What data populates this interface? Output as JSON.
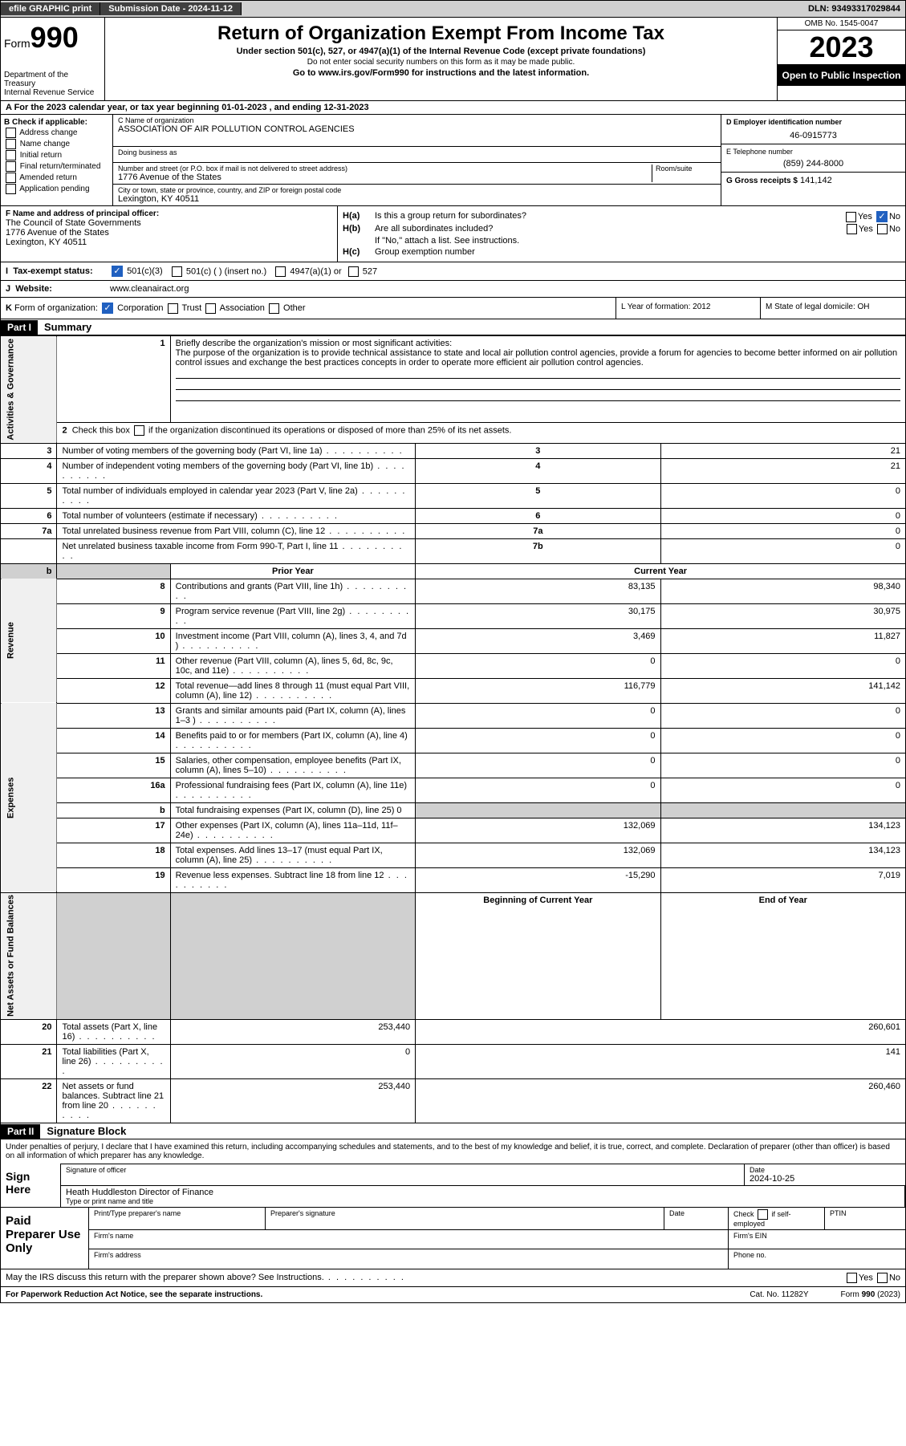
{
  "top": {
    "efile": "efile GRAPHIC print",
    "submission": "Submission Date - 2024-11-12",
    "dln": "DLN: 93493317029844"
  },
  "header": {
    "form_prefix": "Form",
    "form_num": "990",
    "dept": "Department of the Treasury",
    "irs": "Internal Revenue Service",
    "title": "Return of Organization Exempt From Income Tax",
    "subtitle": "Under section 501(c), 527, or 4947(a)(1) of the Internal Revenue Code (except private foundations)",
    "warn": "Do not enter social security numbers on this form as it may be made public.",
    "goto": "Go to www.irs.gov/Form990 for instructions and the latest information.",
    "omb": "OMB No. 1545-0047",
    "year": "2023",
    "inspection": "Open to Public Inspection"
  },
  "sectionA": "A  For the 2023 calendar year, or tax year beginning 01-01-2023   , and ending 12-31-2023",
  "b": {
    "label": "B Check if applicable:",
    "opts": [
      "Address change",
      "Name change",
      "Initial return",
      "Final return/terminated",
      "Amended return",
      "Application pending"
    ]
  },
  "c": {
    "name_label": "C Name of organization",
    "name": "ASSOCIATION OF AIR POLLUTION CONTROL AGENCIES",
    "dba_label": "Doing business as",
    "street_label": "Number and street (or P.O. box if mail is not delivered to street address)",
    "room_label": "Room/suite",
    "street": "1776 Avenue of the States",
    "city_label": "City or town, state or province, country, and ZIP or foreign postal code",
    "city": "Lexington, KY  40511"
  },
  "d": {
    "label": "D Employer identification number",
    "value": "46-0915773"
  },
  "e": {
    "label": "E Telephone number",
    "value": "(859) 244-8000"
  },
  "g": {
    "label": "G Gross receipts $",
    "value": "141,142"
  },
  "f": {
    "label": "F  Name and address of principal officer:",
    "name": "The Council of State Governments",
    "street": "1776 Avenue of the States",
    "city": "Lexington, KY  40511"
  },
  "h": {
    "a_label": "H(a)",
    "a_text": "Is this a group return for subordinates?",
    "a_ans": "No",
    "b_label": "H(b)",
    "b_text": "Are all subordinates included?",
    "b_note": "If \"No,\" attach a list. See instructions.",
    "c_label": "H(c)",
    "c_text": "Group exemption number"
  },
  "i": {
    "label": "I",
    "text": "Tax-exempt status:",
    "opt1": "501(c)(3)",
    "opt2": "501(c) (  ) (insert no.)",
    "opt3": "4947(a)(1) or",
    "opt4": "527"
  },
  "j": {
    "label": "J",
    "text": "Website:",
    "value": "www.cleanairact.org"
  },
  "k": {
    "label": "K",
    "text": "Form of organization:",
    "opts": [
      "Corporation",
      "Trust",
      "Association",
      "Other"
    ]
  },
  "l": {
    "text": "L Year of formation: 2012"
  },
  "m": {
    "text": "M State of legal domicile: OH"
  },
  "part1": {
    "label": "Part I",
    "title": "Summary"
  },
  "summary": {
    "s1_label": "1",
    "s1_text": "Briefly describe the organization's mission or most significant activities:",
    "s1_mission": "The purpose of the organization is to provide technical assistance to state and local air pollution control agencies, provide a forum for agencies to become better informed on air pollution control issues and exchange the best practices concepts in order to operate more efficient air pollution control agencies.",
    "s2": "2   Check this box      if the organization discontinued its operations or disposed of more than 25% of its net assets.",
    "rows_ag": [
      {
        "n": "3",
        "t": "Number of voting members of the governing body (Part VI, line 1a)",
        "b": "3",
        "v": "21"
      },
      {
        "n": "4",
        "t": "Number of independent voting members of the governing body (Part VI, line 1b)",
        "b": "4",
        "v": "21"
      },
      {
        "n": "5",
        "t": "Total number of individuals employed in calendar year 2023 (Part V, line 2a)",
        "b": "5",
        "v": "0"
      },
      {
        "n": "6",
        "t": "Total number of volunteers (estimate if necessary)",
        "b": "6",
        "v": "0"
      },
      {
        "n": "7a",
        "t": "Total unrelated business revenue from Part VIII, column (C), line 12",
        "b": "7a",
        "v": "0"
      },
      {
        "n": "",
        "t": "Net unrelated business taxable income from Form 990-T, Part I, line 11",
        "b": "7b",
        "v": "0"
      }
    ],
    "hdr_prior": "Prior Year",
    "hdr_current": "Current Year",
    "rows_rev": [
      {
        "n": "8",
        "t": "Contributions and grants (Part VIII, line 1h)",
        "p": "83,135",
        "c": "98,340"
      },
      {
        "n": "9",
        "t": "Program service revenue (Part VIII, line 2g)",
        "p": "30,175",
        "c": "30,975"
      },
      {
        "n": "10",
        "t": "Investment income (Part VIII, column (A), lines 3, 4, and 7d )",
        "p": "3,469",
        "c": "11,827"
      },
      {
        "n": "11",
        "t": "Other revenue (Part VIII, column (A), lines 5, 6d, 8c, 9c, 10c, and 11e)",
        "p": "0",
        "c": "0"
      },
      {
        "n": "12",
        "t": "Total revenue—add lines 8 through 11 (must equal Part VIII, column (A), line 12)",
        "p": "116,779",
        "c": "141,142"
      }
    ],
    "rows_exp": [
      {
        "n": "13",
        "t": "Grants and similar amounts paid (Part IX, column (A), lines 1–3 )",
        "p": "0",
        "c": "0"
      },
      {
        "n": "14",
        "t": "Benefits paid to or for members (Part IX, column (A), line 4)",
        "p": "0",
        "c": "0"
      },
      {
        "n": "15",
        "t": "Salaries, other compensation, employee benefits (Part IX, column (A), lines 5–10)",
        "p": "0",
        "c": "0"
      },
      {
        "n": "16a",
        "t": "Professional fundraising fees (Part IX, column (A), line 11e)",
        "p": "0",
        "c": "0"
      },
      {
        "n": "b",
        "t": "Total fundraising expenses (Part IX, column (D), line 25) 0",
        "p": "",
        "c": "",
        "shaded": true
      },
      {
        "n": "17",
        "t": "Other expenses (Part IX, column (A), lines 11a–11d, 11f–24e)",
        "p": "132,069",
        "c": "134,123"
      },
      {
        "n": "18",
        "t": "Total expenses. Add lines 13–17 (must equal Part IX, column (A), line 25)",
        "p": "132,069",
        "c": "134,123"
      },
      {
        "n": "19",
        "t": "Revenue less expenses. Subtract line 18 from line 12",
        "p": "-15,290",
        "c": "7,019"
      }
    ],
    "hdr_beg": "Beginning of Current Year",
    "hdr_end": "End of Year",
    "rows_net": [
      {
        "n": "20",
        "t": "Total assets (Part X, line 16)",
        "p": "253,440",
        "c": "260,601"
      },
      {
        "n": "21",
        "t": "Total liabilities (Part X, line 26)",
        "p": "0",
        "c": "141"
      },
      {
        "n": "22",
        "t": "Net assets or fund balances. Subtract line 21 from line 20",
        "p": "253,440",
        "c": "260,460"
      }
    ],
    "vtab_ag": "Activities & Governance",
    "vtab_rev": "Revenue",
    "vtab_exp": "Expenses",
    "vtab_net": "Net Assets or Fund Balances"
  },
  "part2": {
    "label": "Part II",
    "title": "Signature Block"
  },
  "sig": {
    "perjury": "Under penalties of perjury, I declare that I have examined this return, including accompanying schedules and statements, and to the best of my knowledge and belief, it is true, correct, and complete. Declaration of preparer (other than officer) is based on all information of which preparer has any knowledge.",
    "sign_here": "Sign Here",
    "sig_label": "Signature of officer",
    "date_label": "Date",
    "date_value": "2024-10-25",
    "officer": "Heath Huddleston Director of Finance",
    "type_label": "Type or print name and title"
  },
  "prep": {
    "label": "Paid Preparer Use Only",
    "h1": "Print/Type preparer's name",
    "h2": "Preparer's signature",
    "h3": "Date",
    "h4": "Check       if self-employed",
    "h5": "PTIN",
    "firm": "Firm's name",
    "ein": "Firm's EIN",
    "addr": "Firm's address",
    "phone": "Phone no."
  },
  "discuss": "May the IRS discuss this return with the preparer shown above? See Instructions.",
  "footer": {
    "pra": "For Paperwork Reduction Act Notice, see the separate instructions.",
    "cat": "Cat. No. 11282Y",
    "form": "Form 990 (2023)"
  }
}
